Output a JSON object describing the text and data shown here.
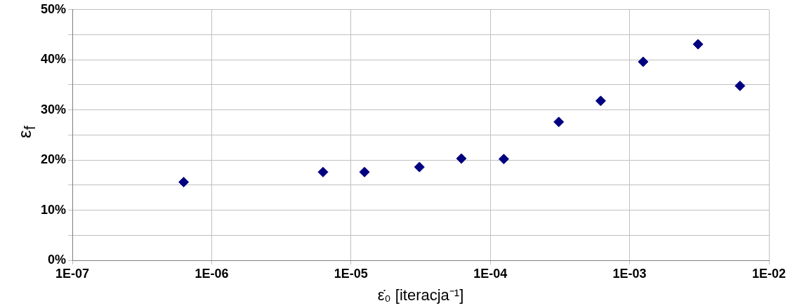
{
  "chart_data": {
    "type": "scatter",
    "xlabel": "ε̇₀ [iteracja⁻¹]",
    "ylabel": "ε$_{f}$",
    "x": [
      6.3e-07,
      6.3e-06,
      1.25e-05,
      3.1e-05,
      6.2e-05,
      0.000125,
      0.00031,
      0.00062,
      0.00125,
      0.0031,
      0.0062
    ],
    "series": [
      {
        "color": "#000080",
        "values": [
          15.6,
          17.6,
          17.6,
          18.6,
          20.3,
          20.2,
          27.6,
          31.8,
          39.6,
          43.1,
          34.8
        ]
      }
    ],
    "log": "x",
    "marker": "diamond",
    "grid": true,
    "legend": false,
    "xlim": [
      1e-07,
      0.01
    ],
    "xticks": [
      {
        "value": 1e-07,
        "label": "1E-07"
      },
      {
        "value": 1e-06,
        "label": "1E-06"
      },
      {
        "value": 1e-05,
        "label": "1E-05"
      },
      {
        "value": 0.0001,
        "label": "1E-04"
      },
      {
        "value": 0.001,
        "label": "1E-03"
      },
      {
        "value": 0.01,
        "label": "1E-02"
      }
    ],
    "ylim": [
      0,
      50
    ],
    "yticks": [
      {
        "value": 0,
        "label": "0%"
      },
      {
        "value": 5,
        "label": null
      },
      {
        "value": 10,
        "label": "10%"
      },
      {
        "value": 15,
        "label": null
      },
      {
        "value": 20,
        "label": "20%"
      },
      {
        "value": 25,
        "label": null
      },
      {
        "value": 30,
        "label": "30%"
      },
      {
        "value": 35,
        "label": null
      },
      {
        "value": 40,
        "label": "40%"
      },
      {
        "value": 45,
        "label": null
      },
      {
        "value": 50,
        "label": "50%"
      }
    ]
  }
}
